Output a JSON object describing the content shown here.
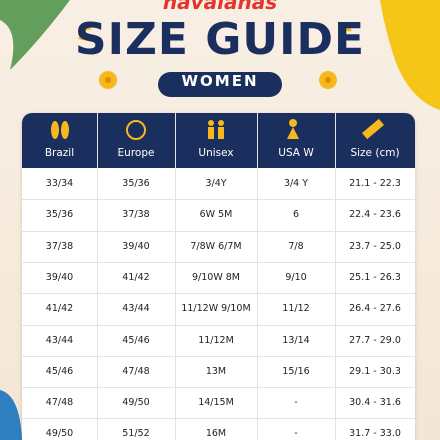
{
  "header": {
    "brand": "havaianas",
    "title": "SIZE GUIDE",
    "subtitle": "WOMEN"
  },
  "table": {
    "columns": [
      "Brazil",
      "Europe",
      "Unisex",
      "USA W",
      "Size (cm)"
    ],
    "rows": [
      [
        "33/34",
        "35/36",
        "3/4Y",
        "3/4 Y",
        "21.1 - 22.3"
      ],
      [
        "35/36",
        "37/38",
        "6W 5M",
        "6",
        "22.4 - 23.6"
      ],
      [
        "37/38",
        "39/40",
        "7/8W 6/7M",
        "7/8",
        "23.7 - 25.0"
      ],
      [
        "39/40",
        "41/42",
        "9/10W 8M",
        "9/10",
        "25.1 - 26.3"
      ],
      [
        "41/42",
        "43/44",
        "11/12W 9/10M",
        "11/12",
        "26.4 - 27.6"
      ],
      [
        "43/44",
        "45/46",
        "11/12M",
        "13/14",
        "27.7 - 29.0"
      ],
      [
        "45/46",
        "47/48",
        "13M",
        "15/16",
        "29.1 - 30.3"
      ],
      [
        "47/48",
        "49/50",
        "14/15M",
        "-",
        "30.4 - 31.6"
      ],
      [
        "49/50",
        "51/52",
        "16M",
        "-",
        "31.7 - 33.0"
      ]
    ]
  }
}
